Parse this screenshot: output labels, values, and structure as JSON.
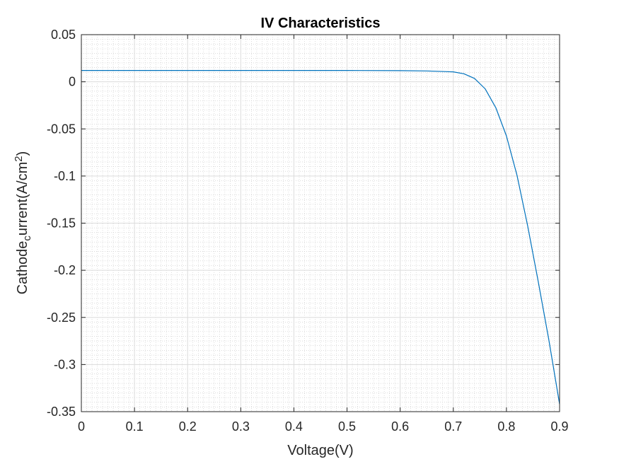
{
  "chart_data": {
    "type": "line",
    "title": "IV Characteristics",
    "xlabel": "Voltage(V)",
    "ylabel": {
      "base": "Cathode",
      "subscript": "c",
      "middle": "urrent(A/cm",
      "superscript": "2",
      "end": ")"
    },
    "xlim": [
      0,
      0.9
    ],
    "ylim": [
      -0.35,
      0.05
    ],
    "x_ticks": [
      "0",
      "0.1",
      "0.2",
      "0.3",
      "0.4",
      "0.5",
      "0.6",
      "0.7",
      "0.8",
      "0.9"
    ],
    "y_ticks": [
      "0.05",
      "0",
      "-0.05",
      "-0.1",
      "-0.15",
      "-0.2",
      "-0.25",
      "-0.3",
      "-0.35"
    ],
    "grid": true,
    "minor_grid": true,
    "series": [
      {
        "color": "#0072bd",
        "x": [
          0,
          0.1,
          0.2,
          0.3,
          0.4,
          0.5,
          0.6,
          0.65,
          0.7,
          0.72,
          0.74,
          0.76,
          0.78,
          0.8,
          0.82,
          0.84,
          0.86,
          0.88,
          0.9
        ],
        "y": [
          0.012,
          0.012,
          0.012,
          0.012,
          0.012,
          0.012,
          0.0118,
          0.0115,
          0.0105,
          0.0085,
          0.0035,
          -0.0075,
          -0.0275,
          -0.0575,
          -0.0995,
          -0.153,
          -0.2125,
          -0.2745,
          -0.342
        ]
      }
    ]
  }
}
